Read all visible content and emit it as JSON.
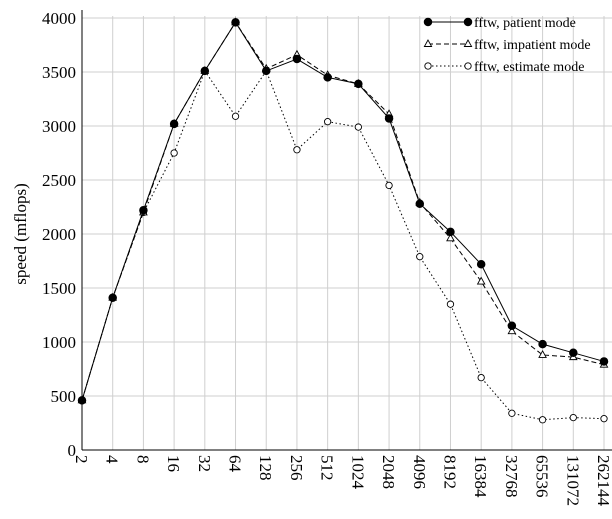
{
  "chart_data": {
    "type": "line",
    "y_label": "speed (mflops)",
    "categories": [
      "2",
      "4",
      "8",
      "16",
      "32",
      "64",
      "128",
      "256",
      "512",
      "1024",
      "2048",
      "4096",
      "8192",
      "16384",
      "32768",
      "65536",
      "131072",
      "262144"
    ],
    "series": [
      {
        "name": "fftw, patient mode",
        "color": "#000000",
        "marker": "circle-filled",
        "dash": "solid",
        "values": [
          460,
          1410,
          2220,
          3020,
          3510,
          3960,
          3510,
          3620,
          3450,
          3390,
          3070,
          2280,
          2020,
          1720,
          1150,
          980,
          900,
          820
        ]
      },
      {
        "name": "fftw, impatient mode",
        "color": "#000000",
        "marker": "triangle-open",
        "dash": "dashed",
        "values": [
          460,
          1410,
          2200,
          3020,
          3510,
          3960,
          3530,
          3660,
          3470,
          3390,
          3110,
          2290,
          1960,
          1560,
          1100,
          880,
          860,
          790
        ]
      },
      {
        "name": "fftw, estimate mode",
        "color": "#000000",
        "marker": "circle-open",
        "dash": "dotted",
        "values": [
          460,
          1410,
          2200,
          2750,
          3510,
          3090,
          3510,
          2780,
          3040,
          2990,
          2450,
          1790,
          1350,
          670,
          340,
          280,
          300,
          290
        ]
      }
    ],
    "ylim": [
      0,
      4000
    ],
    "yticks": [
      0,
      500,
      1000,
      1500,
      2000,
      2500,
      3000,
      3500,
      4000
    ],
    "grid": true,
    "legend": "upper-right"
  }
}
